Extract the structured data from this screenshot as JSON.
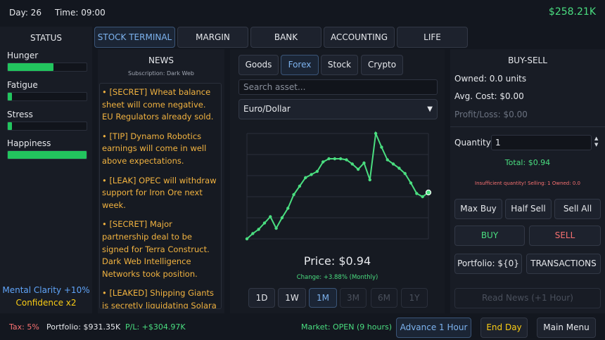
{
  "header": {
    "day": "Day: 26",
    "time": "Time: 09:00",
    "cash": "$258.21K"
  },
  "status": {
    "title": "STATUS",
    "stats": [
      {
        "label": "Hunger",
        "fill": 0.58
      },
      {
        "label": "Fatigue",
        "fill": 0.05
      },
      {
        "label": "Stress",
        "fill": 0.05
      },
      {
        "label": "Happiness",
        "fill": 1.0
      }
    ],
    "mental_clarity": "Mental Clarity +10%",
    "confidence": "Confidence x2"
  },
  "tabs": [
    "STOCK TERMINAL",
    "MARGIN",
    "BANK",
    "ACCOUNTING",
    "LIFE"
  ],
  "active_tab": 0,
  "news": {
    "title": "NEWS",
    "subscription": "Subscription: Dark Web",
    "items": [
      "• [SECRET] Wheat balance sheet will come negative. EU Regulators already sold.",
      "• [TIP] Dynamo Robotics earnings will come in well above expectations.",
      "• [LEAK] OPEC will withdraw support for Iron Ore next week.",
      "• [SECRET] Major partnership deal to be signed for Terra Construct. Dark Web Intelligence Networks took position.",
      "• [LEAKED] Shipping Giants is secretly liquidating Solara Energy positions."
    ]
  },
  "market": {
    "categories": [
      "Goods",
      "Forex",
      "Stock",
      "Crypto"
    ],
    "active_category": 1,
    "search_placeholder": "Search asset...",
    "selected_asset": "Euro/Dollar",
    "price": "Price: $0.94",
    "change": "Change: +3.88% (Monthly)",
    "timeframes": [
      "1D",
      "1W",
      "1M",
      "3M",
      "6M",
      "1Y"
    ],
    "active_timeframe": 2,
    "disabled_timeframes": [
      3,
      4,
      5
    ]
  },
  "chart_data": {
    "type": "line",
    "title": "",
    "xlabel": "",
    "ylabel": "",
    "grid": true,
    "color": "#4ade80",
    "values": [
      0.0,
      0.05,
      0.09,
      0.15,
      0.21,
      0.1,
      0.2,
      0.29,
      0.42,
      0.5,
      0.58,
      0.61,
      0.64,
      0.73,
      0.76,
      0.76,
      0.76,
      0.75,
      0.71,
      0.66,
      0.72,
      0.56,
      1.0,
      0.87,
      0.75,
      0.71,
      0.67,
      0.62,
      0.53,
      0.43,
      0.4,
      0.44
    ]
  },
  "trade": {
    "title": "BUY-SELL",
    "owned": "Owned: 0.0 units",
    "avg_cost": "Avg. Cost: $0.00",
    "profit_loss": "Profit/Loss: $0.00",
    "quantity_label": "Quantity:",
    "quantity": "1",
    "total": "Total: $0.94",
    "warning": "Insufficient quantity! Selling: 1 Owned: 0.0",
    "max_buy": "Max Buy",
    "half_sell": "Half Sell",
    "sell_all": "Sell All",
    "buy": "BUY",
    "sell": "SELL",
    "portfolio": "Portfolio: ${0}",
    "transactions": "TRANSACTIONS",
    "read_news": "Read News (+1 Hour)"
  },
  "footer": {
    "tax": "Tax: 5%",
    "portfolio": "Portfolio: $931.35K",
    "pl": "P/L: +$304.97K",
    "market_status": "Market: OPEN (9 hours)",
    "advance": "Advance 1 Hour",
    "end_day": "End Day",
    "main_menu": "Main Menu"
  }
}
